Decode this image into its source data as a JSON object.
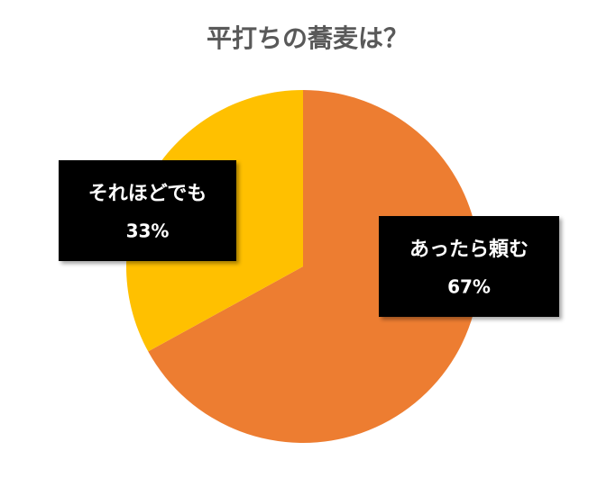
{
  "chart_data": {
    "type": "pie",
    "title": "平打ちの蕎麦は？",
    "categories": [
      "あったら頼む",
      "それほどでも"
    ],
    "values": [
      67,
      33
    ],
    "value_labels": [
      "67%",
      "33%"
    ],
    "colors": [
      "#ED7D31",
      "#FFC000"
    ]
  }
}
